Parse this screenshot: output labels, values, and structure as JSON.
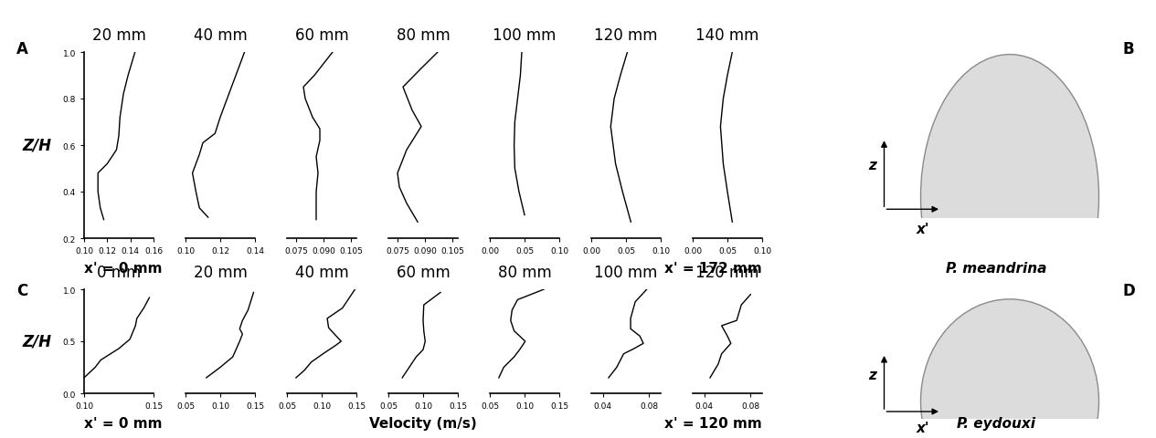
{
  "x_label": "Velocity (m/s)",
  "axis_letters": {
    "vertical": "z",
    "horizontal": "x'"
  },
  "chart_data": [
    {
      "type": "line",
      "panel_label": "A",
      "image_label": "B",
      "species": "P. meandrina",
      "y_label": "Z/H",
      "x_start_label": "x' = 0 mm",
      "x_end_label": "x' = 172 mm",
      "color": "#000000",
      "panels": [
        {
          "title": "20 mm",
          "x": [
            0.117,
            0.114,
            0.112,
            0.112,
            0.12,
            0.128,
            0.13,
            0.131,
            0.134,
            0.138,
            0.144
          ],
          "y": [
            0.28,
            0.33,
            0.4,
            0.48,
            0.52,
            0.58,
            0.64,
            0.72,
            0.82,
            0.9,
            1.0
          ],
          "xlim": [
            0.1,
            0.16
          ],
          "xticks": [
            {
              "value": 0.1,
              "label": "0.10"
            },
            0.12,
            0.14,
            0.16
          ],
          "ylim": [
            0.2,
            1.0
          ],
          "yticks": [
            0.2,
            0.4,
            0.6,
            0.8,
            1.0
          ]
        },
        {
          "title": "40 mm",
          "x": [
            0.113,
            0.108,
            0.106,
            0.104,
            0.108,
            0.11,
            0.117,
            0.12,
            0.125,
            0.13,
            0.134
          ],
          "y": [
            0.29,
            0.33,
            0.4,
            0.48,
            0.56,
            0.61,
            0.65,
            0.72,
            0.82,
            0.92,
            1.0
          ],
          "xlim": [
            0.1,
            0.14
          ],
          "xticks": [
            {
              "value": 0.1,
              "label": "0.10"
            },
            0.12,
            0.14
          ],
          "ylim": [
            0.2,
            1.0
          ],
          "tick_labels": "x"
        },
        {
          "title": "60 mm",
          "x": [
            0.086,
            0.086,
            0.087,
            0.086,
            0.088,
            0.088,
            0.084,
            0.08,
            0.079,
            0.085,
            0.095
          ],
          "y": [
            0.28,
            0.4,
            0.48,
            0.55,
            0.62,
            0.67,
            0.72,
            0.8,
            0.85,
            0.9,
            1.0
          ],
          "xlim": [
            0.07,
            0.108
          ],
          "xticks": [
            0.075,
            {
              "value": 0.09,
              "label": "0.090"
            },
            0.105
          ],
          "ylim": [
            0.2,
            1.0
          ],
          "tick_labels": "x"
        },
        {
          "title": "80 mm",
          "x": [
            0.086,
            0.08,
            0.076,
            0.075,
            0.08,
            0.088,
            0.083,
            0.078,
            0.088,
            0.097
          ],
          "y": [
            0.27,
            0.35,
            0.42,
            0.48,
            0.58,
            0.68,
            0.75,
            0.85,
            0.93,
            1.0
          ],
          "xlim": [
            0.07,
            0.108
          ],
          "xticks": [
            0.075,
            {
              "value": 0.09,
              "label": "0.090"
            },
            0.105
          ],
          "ylim": [
            0.2,
            1.0
          ],
          "tick_labels": "x"
        },
        {
          "title": "100 mm",
          "x": [
            0.05,
            0.042,
            0.036,
            0.035,
            0.036,
            0.04,
            0.044,
            0.046
          ],
          "y": [
            0.3,
            0.4,
            0.5,
            0.6,
            0.7,
            0.8,
            0.9,
            1.0
          ],
          "xlim": [
            0.0,
            0.1
          ],
          "xticks": [
            {
              "value": 0.0,
              "label": "0.00"
            },
            0.05,
            {
              "value": 0.1,
              "label": "0.10"
            }
          ],
          "ylim": [
            0.2,
            1.0
          ],
          "tick_labels": "x"
        },
        {
          "title": "120 mm",
          "x": [
            0.057,
            0.045,
            0.035,
            0.028,
            0.033,
            0.042,
            0.052
          ],
          "y": [
            0.27,
            0.4,
            0.52,
            0.68,
            0.8,
            0.9,
            1.0
          ],
          "xlim": [
            0.0,
            0.1
          ],
          "xticks": [
            {
              "value": 0.0,
              "label": "0.00"
            },
            0.05,
            {
              "value": 0.1,
              "label": "0.10"
            }
          ],
          "ylim": [
            0.2,
            1.0
          ],
          "tick_labels": "x"
        },
        {
          "title": "140 mm",
          "x": [
            0.057,
            0.05,
            0.044,
            0.04,
            0.044,
            0.05,
            0.057
          ],
          "y": [
            0.27,
            0.4,
            0.52,
            0.68,
            0.8,
            0.9,
            1.0
          ],
          "xlim": [
            0.0,
            0.1
          ],
          "xticks": [
            {
              "value": 0.0,
              "label": "0.00"
            },
            0.05,
            {
              "value": 0.1,
              "label": "0.10"
            }
          ],
          "ylim": [
            0.2,
            1.0
          ],
          "tick_labels": "x"
        }
      ]
    },
    {
      "type": "line",
      "panel_label": "C",
      "image_label": "D",
      "species": "P. eydouxi",
      "y_label": "Z/H",
      "x_start_label": "x' = 0 mm",
      "x_end_label": "x' = 120 mm",
      "color": "#000000",
      "panels": [
        {
          "title": "0 mm",
          "x": [
            0.1,
            0.108,
            0.112,
            0.125,
            0.133,
            0.137,
            0.138,
            0.143,
            0.147
          ],
          "y": [
            0.15,
            0.25,
            0.32,
            0.43,
            0.52,
            0.65,
            0.72,
            0.82,
            0.92
          ],
          "xlim": [
            0.1,
            0.15
          ],
          "xticks": [
            {
              "value": 0.1,
              "label": "0.10"
            },
            0.15
          ],
          "ylim": [
            0.0,
            1.0
          ],
          "yticks": [
            0.0,
            0.5,
            1.0
          ]
        },
        {
          "title": "20 mm",
          "x": [
            0.08,
            0.1,
            0.118,
            0.128,
            0.132,
            0.128,
            0.132,
            0.14,
            0.148
          ],
          "y": [
            0.15,
            0.25,
            0.35,
            0.5,
            0.57,
            0.62,
            0.7,
            0.8,
            0.97
          ],
          "xlim": [
            0.05,
            0.15
          ],
          "xticks": [
            0.05,
            {
              "value": 0.1,
              "label": "0.10"
            },
            0.15
          ],
          "ylim": [
            0.0,
            1.0
          ],
          "tick_labels": "x"
        },
        {
          "title": "40 mm",
          "x": [
            0.063,
            0.075,
            0.085,
            0.102,
            0.12,
            0.128,
            0.11,
            0.108,
            0.13,
            0.14,
            0.148
          ],
          "y": [
            0.15,
            0.22,
            0.3,
            0.38,
            0.46,
            0.5,
            0.63,
            0.72,
            0.82,
            0.92,
            1.0
          ],
          "xlim": [
            0.05,
            0.15
          ],
          "xticks": [
            0.05,
            {
              "value": 0.1,
              "label": "0.10"
            },
            0.15
          ],
          "ylim": [
            0.0,
            1.0
          ],
          "tick_labels": "x"
        },
        {
          "title": "60 mm",
          "x": [
            0.07,
            0.08,
            0.09,
            0.1,
            0.103,
            0.101,
            0.1,
            0.101,
            0.125
          ],
          "y": [
            0.15,
            0.25,
            0.35,
            0.42,
            0.5,
            0.6,
            0.7,
            0.85,
            0.97
          ],
          "xlim": [
            0.05,
            0.15
          ],
          "xticks": [
            0.05,
            {
              "value": 0.1,
              "label": "0.10"
            },
            0.15
          ],
          "ylim": [
            0.0,
            1.0
          ],
          "tick_labels": "x"
        },
        {
          "title": "80 mm",
          "x": [
            0.063,
            0.07,
            0.085,
            0.093,
            0.101,
            0.085,
            0.08,
            0.082,
            0.09,
            0.128
          ],
          "y": [
            0.15,
            0.25,
            0.35,
            0.42,
            0.5,
            0.6,
            0.7,
            0.8,
            0.9,
            1.0
          ],
          "xlim": [
            0.05,
            0.15
          ],
          "xticks": [
            0.05,
            {
              "value": 0.1,
              "label": "0.10"
            },
            0.15
          ],
          "ylim": [
            0.0,
            1.0
          ],
          "tick_labels": "x"
        },
        {
          "title": "100 mm",
          "x": [
            0.045,
            0.052,
            0.058,
            0.067,
            0.075,
            0.072,
            0.064,
            0.064,
            0.068,
            0.078
          ],
          "y": [
            0.15,
            0.25,
            0.38,
            0.43,
            0.48,
            0.55,
            0.62,
            0.72,
            0.88,
            1.0
          ],
          "xlim": [
            0.03,
            0.09
          ],
          "xticks": [
            0.04,
            0.08
          ],
          "ylim": [
            0.0,
            1.0
          ],
          "tick_labels": "x"
        },
        {
          "title": "120 mm",
          "x": [
            0.045,
            0.052,
            0.055,
            0.063,
            0.06,
            0.055,
            0.068,
            0.072,
            0.08
          ],
          "y": [
            0.15,
            0.28,
            0.38,
            0.48,
            0.55,
            0.65,
            0.7,
            0.85,
            0.95
          ],
          "xlim": [
            0.03,
            0.09
          ],
          "xticks": [
            0.04,
            0.08
          ],
          "ylim": [
            0.0,
            1.0
          ],
          "tick_labels": "x"
        }
      ]
    }
  ]
}
